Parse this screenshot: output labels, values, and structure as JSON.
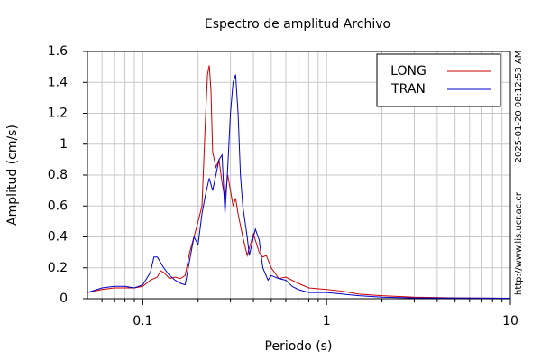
{
  "chart_data": {
    "type": "line",
    "title": "Espectro de amplitud Archivo",
    "x_label": "Periodo (s)",
    "y_label": "Amplitud (cm/s)",
    "timestamp": "2025-01-20 08:12:53 AM",
    "url": "http://www.lis.ucr.ac.cr",
    "xscale": "log",
    "xlim": [
      0.05,
      10
    ],
    "ylim": [
      0,
      1.6
    ],
    "xticks": [
      0.1,
      1,
      10
    ],
    "xminorticks": [
      0.06,
      0.07,
      0.08,
      0.09,
      0.2,
      0.3,
      0.4,
      0.5,
      0.6,
      0.7,
      0.8,
      0.9,
      2,
      3,
      4,
      5,
      6,
      7,
      8,
      9
    ],
    "yticks": [
      0,
      0.2,
      0.4,
      0.6,
      0.8,
      1,
      1.2,
      1.4,
      1.6
    ],
    "grid": true,
    "legend": "upper right",
    "series": [
      {
        "name": "LONG",
        "color": "#cc0000",
        "x": [
          0.05,
          0.06,
          0.07,
          0.08,
          0.09,
          0.1,
          0.11,
          0.12,
          0.125,
          0.13,
          0.14,
          0.15,
          0.16,
          0.17,
          0.18,
          0.19,
          0.2,
          0.21,
          0.215,
          0.22,
          0.225,
          0.23,
          0.235,
          0.24,
          0.25,
          0.26,
          0.27,
          0.28,
          0.29,
          0.3,
          0.31,
          0.32,
          0.33,
          0.35,
          0.37,
          0.4,
          0.43,
          0.45,
          0.47,
          0.5,
          0.55,
          0.6,
          0.7,
          0.8,
          1,
          1.2,
          1.5,
          2,
          3,
          5,
          10
        ],
        "values": [
          0.04,
          0.06,
          0.07,
          0.07,
          0.07,
          0.08,
          0.12,
          0.14,
          0.18,
          0.17,
          0.13,
          0.14,
          0.13,
          0.15,
          0.3,
          0.4,
          0.5,
          0.6,
          0.9,
          1.2,
          1.45,
          1.51,
          1.35,
          0.95,
          0.85,
          0.9,
          0.75,
          0.65,
          0.8,
          0.7,
          0.6,
          0.65,
          0.55,
          0.4,
          0.28,
          0.42,
          0.3,
          0.27,
          0.28,
          0.2,
          0.13,
          0.14,
          0.1,
          0.07,
          0.06,
          0.05,
          0.03,
          0.02,
          0.01,
          0.005,
          0.003
        ]
      },
      {
        "name": "TRAN",
        "color": "#0000cc",
        "x": [
          0.05,
          0.06,
          0.07,
          0.08,
          0.09,
          0.1,
          0.11,
          0.115,
          0.12,
          0.13,
          0.14,
          0.15,
          0.16,
          0.17,
          0.18,
          0.19,
          0.2,
          0.21,
          0.22,
          0.23,
          0.24,
          0.25,
          0.26,
          0.27,
          0.28,
          0.29,
          0.3,
          0.31,
          0.32,
          0.33,
          0.34,
          0.35,
          0.37,
          0.38,
          0.4,
          0.41,
          0.43,
          0.45,
          0.48,
          0.5,
          0.55,
          0.6,
          0.65,
          0.7,
          0.8,
          1,
          1.5,
          2,
          3,
          10
        ],
        "values": [
          0.04,
          0.07,
          0.08,
          0.08,
          0.07,
          0.09,
          0.17,
          0.27,
          0.27,
          0.2,
          0.15,
          0.12,
          0.1,
          0.09,
          0.25,
          0.4,
          0.35,
          0.55,
          0.68,
          0.78,
          0.7,
          0.8,
          0.9,
          0.93,
          0.55,
          0.85,
          1.2,
          1.4,
          1.45,
          1.2,
          0.8,
          0.6,
          0.4,
          0.28,
          0.4,
          0.45,
          0.38,
          0.2,
          0.12,
          0.15,
          0.13,
          0.12,
          0.08,
          0.06,
          0.04,
          0.04,
          0.02,
          0.01,
          0.005,
          0.003
        ]
      }
    ]
  }
}
